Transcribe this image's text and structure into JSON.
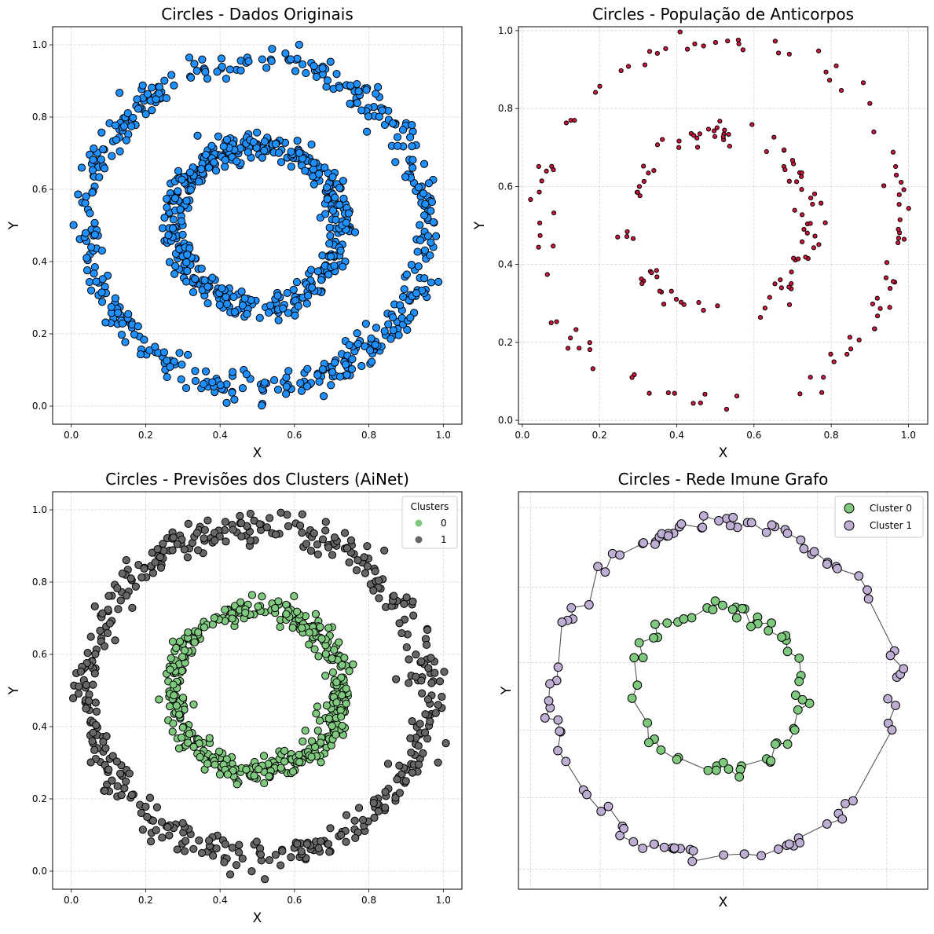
{
  "chart_data": [
    {
      "type": "scatter",
      "title": "Circles - Dados Originais",
      "xlabel": "X",
      "ylabel": "Y",
      "xlim": [
        -0.05,
        1.05
      ],
      "ylim": [
        -0.05,
        1.05
      ],
      "xticks": [
        "0.0",
        "0.2",
        "0.4",
        "0.6",
        "0.8",
        "1.0"
      ],
      "yticks": [
        "0.0",
        "0.2",
        "0.4",
        "0.6",
        "0.8",
        "1.0"
      ],
      "grid": true,
      "marker_color": "#1e90ff",
      "series": [
        {
          "rings": [
            {
              "cx": 0.5,
              "cy": 0.5,
              "r": 0.455,
              "n": 460,
              "noise": 0.04
            },
            {
              "cx": 0.5,
              "cy": 0.5,
              "r": 0.225,
              "n": 440,
              "noise": 0.035
            }
          ]
        }
      ]
    },
    {
      "type": "scatter",
      "title": "Circles - População de Anticorpos",
      "xlabel": "X",
      "ylabel": "Y",
      "xlim": [
        -0.01,
        1.05
      ],
      "ylim": [
        -0.01,
        1.01
      ],
      "xticks": [
        "0.0",
        "0.2",
        "0.4",
        "0.6",
        "0.8",
        "1.0"
      ],
      "yticks": [
        "0.0",
        "0.2",
        "0.4",
        "0.6",
        "0.8",
        "1.0"
      ],
      "grid": true,
      "marker_color": "#d2143c",
      "series": [
        {
          "rings": [
            {
              "cx": 0.515,
              "cy": 0.505,
              "r": 0.465,
              "n": 100,
              "noise": 0.03
            },
            {
              "cx": 0.515,
              "cy": 0.505,
              "r": 0.235,
              "n": 95,
              "noise": 0.035
            }
          ]
        }
      ]
    },
    {
      "type": "scatter",
      "title": "Circles - Previsões dos Clusters (AiNet)",
      "xlabel": "X",
      "ylabel": "Y",
      "xlim": [
        -0.05,
        1.05
      ],
      "ylim": [
        -0.05,
        1.05
      ],
      "xticks": [
        "0.0",
        "0.2",
        "0.4",
        "0.6",
        "0.8",
        "1.0"
      ],
      "yticks": [
        "0.0",
        "0.2",
        "0.4",
        "0.6",
        "0.8",
        "1.0"
      ],
      "grid": true,
      "legend": {
        "title": "Clusters",
        "placement": "upper-right"
      },
      "series": [
        {
          "name": "0",
          "color": "#7fc97f",
          "rings": [
            {
              "cx": 0.5,
              "cy": 0.5,
              "r": 0.225,
              "n": 440,
              "noise": 0.035
            }
          ]
        },
        {
          "name": "1",
          "color": "#666666",
          "rings": [
            {
              "cx": 0.5,
              "cy": 0.5,
              "r": 0.455,
              "n": 460,
              "noise": 0.04
            }
          ]
        }
      ]
    },
    {
      "type": "scatter",
      "title": "Circles - Rede Imune Grafo",
      "xlabel": "X",
      "ylabel": "Y",
      "xlim": [
        0,
        1
      ],
      "ylim": [
        0,
        1
      ],
      "xticks": [],
      "yticks": [],
      "grid": true,
      "legend": {
        "placement": "upper-right"
      },
      "edges": "connected",
      "series": [
        {
          "name": "Cluster 0",
          "color": "#7fc97f",
          "rings": [
            {
              "cx": 0.49,
              "cy": 0.5,
              "r": 0.205,
              "n": 60,
              "noise": 0.02
            }
          ]
        },
        {
          "name": "Cluster 1",
          "color": "#beaed4",
          "rings": [
            {
              "cx": 0.5,
              "cy": 0.5,
              "r": 0.42,
              "n": 100,
              "noise": 0.02
            }
          ]
        }
      ]
    }
  ]
}
